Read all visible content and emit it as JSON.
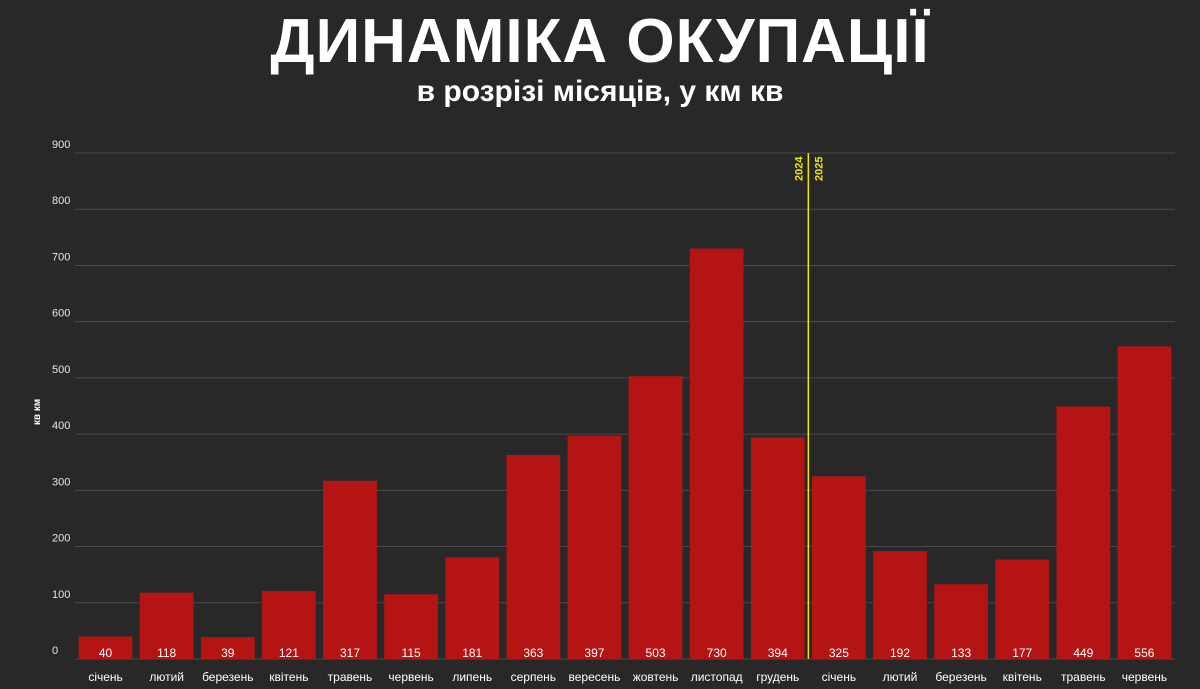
{
  "chart_data": {
    "type": "bar",
    "title": "ДИНАМІКА ОКУПАЦІЇ",
    "subtitle": "в розрізі місяців, у км кв",
    "ylabel": "кв км",
    "ylim": [
      0,
      900
    ],
    "yticks": [
      0,
      100,
      200,
      300,
      400,
      500,
      600,
      700,
      800,
      900
    ],
    "grid": true,
    "categories": [
      "січень",
      "лютий",
      "березень",
      "квітень",
      "травень",
      "червень",
      "липень",
      "серпень",
      "вересень",
      "жовтень",
      "листопад",
      "грудень",
      "січень",
      "лютий",
      "березень",
      "квітень",
      "травень",
      "червень"
    ],
    "series": [
      {
        "values": [
          40,
          118,
          39,
          121,
          317,
          115,
          181,
          363,
          397,
          503,
          730,
          394,
          325,
          192,
          133,
          177,
          449,
          556
        ]
      }
    ],
    "year_divider": {
      "after_index": 11,
      "labels": [
        "2024",
        "2025"
      ]
    },
    "colors": {
      "bar": "#b51414",
      "divider": "#f2e600",
      "grid": "#4a4a4c",
      "background": "#282829"
    }
  }
}
